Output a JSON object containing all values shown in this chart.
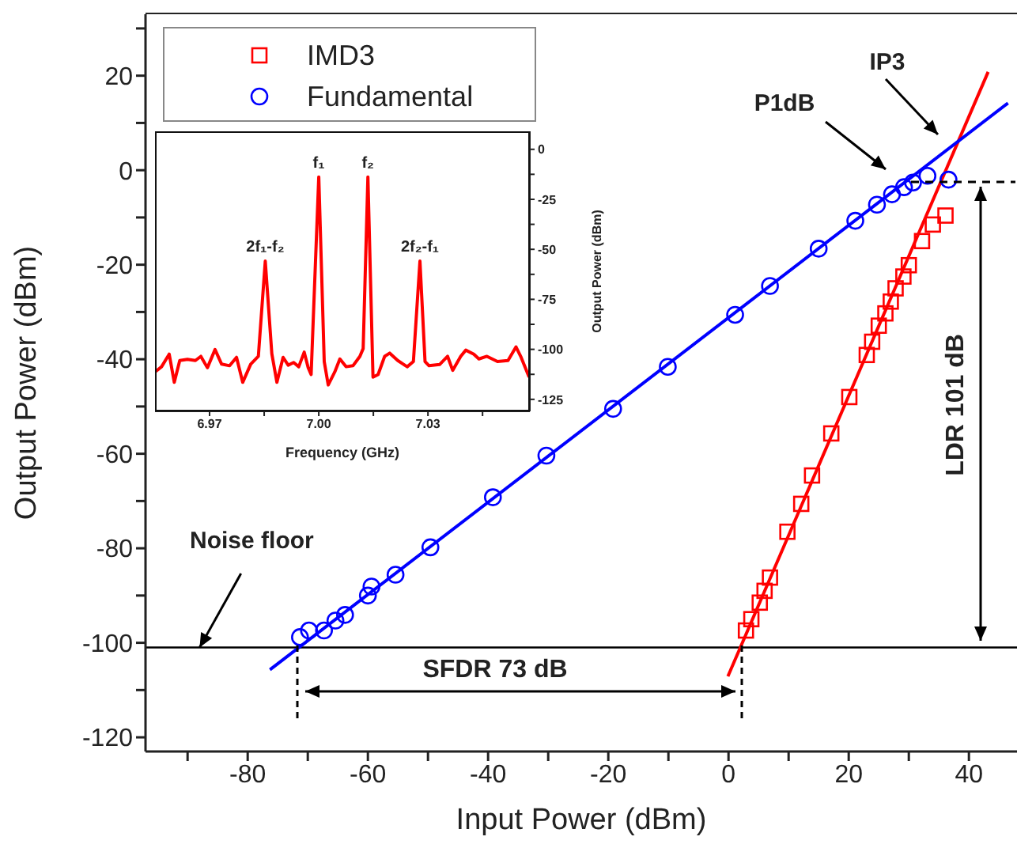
{
  "chart_data": [
    {
      "type": "scatter",
      "xlabel": "Input Power (dBm)",
      "ylabel": "Output Power (dBm)",
      "xlim": [
        -97,
        48
      ],
      "xticks": [
        {
          "value": -90,
          "label": null
        },
        -80,
        {
          "value": -70,
          "label": null
        },
        -60,
        {
          "value": -50,
          "label": null
        },
        -40,
        {
          "value": -30,
          "label": null
        },
        -20,
        {
          "value": -10,
          "label": null
        },
        0,
        {
          "value": 10,
          "label": null
        },
        20,
        {
          "value": 30,
          "label": null
        },
        40
      ],
      "ylim": [
        -123,
        33
      ],
      "yticks": [
        -120,
        {
          "value": -110,
          "label": null
        },
        -100,
        {
          "value": -90,
          "label": null
        },
        -80,
        {
          "value": -70,
          "label": null
        },
        -60,
        {
          "value": -50,
          "label": null
        },
        -40,
        {
          "value": -30,
          "label": null
        },
        -20,
        {
          "value": -10,
          "label": null
        },
        0,
        {
          "value": 10,
          "label": null
        },
        20,
        {
          "value": 30,
          "label": null
        }
      ],
      "legend": "top left",
      "grid": false,
      "series": [
        {
          "type": "line",
          "color": "#ff0000",
          "marker": "none",
          "x": [
            -0.1,
            43.2
          ],
          "values": [
            -107.1,
            20.8
          ]
        },
        {
          "type": "line",
          "color": "#0000ff",
          "marker": "none",
          "x": [
            -76.3,
            46.5
          ],
          "values": [
            -105.7,
            14.2
          ]
        },
        {
          "name": "IMD3",
          "color": "#ff0000",
          "marker": "square",
          "x": [
            2.9,
            3.8,
            5.2,
            6.0,
            6.9,
            9.8,
            12.1,
            13.9,
            17.1,
            20.1,
            23.0,
            23.9,
            25.0,
            26.1,
            27.0,
            27.8,
            29.1,
            30.0,
            32.2,
            34.0,
            36.1
          ],
          "values": [
            -97.4,
            -95.0,
            -91.5,
            -89.0,
            -86.2,
            -76.5,
            -70.6,
            -64.6,
            -55.7,
            -48.0,
            -39.1,
            -36.3,
            -32.9,
            -30.3,
            -27.8,
            -25.0,
            -22.5,
            -20.1,
            -15.0,
            -11.5,
            -9.6
          ]
        },
        {
          "name": "Fundamental",
          "color": "#0000ff",
          "marker": "circle",
          "x": [
            -71.3,
            -69.8,
            -67.3,
            -65.4,
            -63.8,
            -60.0,
            -59.4,
            -55.4,
            -49.6,
            -39.2,
            -30.3,
            -19.2,
            -10.1,
            1.1,
            6.9,
            15.0,
            21.1,
            24.7,
            27.2,
            29.2,
            30.7,
            33.1,
            36.6
          ],
          "values": [
            -98.8,
            -97.4,
            -97.4,
            -95.3,
            -94.1,
            -90.0,
            -88.1,
            -85.6,
            -79.8,
            -69.2,
            -60.4,
            -50.5,
            -41.6,
            -30.6,
            -24.5,
            -16.6,
            -10.7,
            -7.3,
            -5.1,
            -3.6,
            -2.6,
            -1.2,
            -2.0
          ]
        }
      ],
      "ref_lines": [
        {
          "axis": "y",
          "value": -101,
          "color": "#000000"
        }
      ],
      "annotations": [
        "P1dB",
        "IP3",
        {
          "text": "Noise floor",
          "x": -88,
          "y": -101
        },
        "SFDR 73 dB",
        "LDR 101 dB"
      ]
    },
    {
      "type": "line",
      "xlabel": "Frequency (GHz)",
      "ylabel": "Output Power (dBm)",
      "xlim": [
        6.955,
        7.058
      ],
      "xticks": [
        6.97,
        {
          "value": 6.985,
          "label": null
        },
        {
          "value": 7,
          "label": "7.00"
        },
        {
          "value": 7.015,
          "label": null
        },
        7.03,
        {
          "value": 7.045,
          "label": null
        }
      ],
      "ylim": [
        -131,
        9
      ],
      "yticks": [
        {
          "value": -125,
          "label": "-125"
        },
        {
          "value": -112.5,
          "label": null
        },
        -100,
        {
          "value": -87.5,
          "label": null
        },
        -75,
        {
          "value": -62.5,
          "label": null
        },
        -50,
        {
          "value": -37.5,
          "label": null
        },
        -25,
        {
          "value": -12.5,
          "label": null
        },
        0
      ],
      "marker": "none",
      "color": "#ff0000",
      "x": [
        6.955,
        6.9568,
        6.9589,
        6.9603,
        6.9618,
        6.9639,
        6.9661,
        6.9676,
        6.9694,
        6.9715,
        6.9733,
        6.9755,
        6.9774,
        6.9791,
        6.9813,
        6.9834,
        6.9853,
        6.9871,
        6.9885,
        6.9902,
        6.9916,
        6.9931,
        6.9945,
        6.996,
        6.9971,
        6.9979,
        7.0,
        7.0015,
        7.0026,
        7.0044,
        7.0058,
        7.0075,
        7.0094,
        7.0113,
        7.0122,
        7.0135,
        7.0149,
        7.0163,
        7.0181,
        7.0195,
        7.0217,
        7.0243,
        7.026,
        7.0278,
        7.0292,
        7.0303,
        7.0332,
        7.0354,
        7.0368,
        7.039,
        7.0404,
        7.0426,
        7.044,
        7.0462,
        7.0491,
        7.052,
        7.0542,
        7.0556,
        7.0578
      ],
      "values": [
        -111.3,
        -108.7,
        -102.4,
        -116.5,
        -105.6,
        -105.0,
        -105.6,
        -103.5,
        -109.2,
        -100.1,
        -107.4,
        -108.2,
        -104.0,
        -116.5,
        -107.4,
        -103.5,
        -55.9,
        -102.2,
        -116.5,
        -104.0,
        -107.9,
        -106.6,
        -108.7,
        -101.4,
        -109.2,
        -112.6,
        -13.8,
        -106.1,
        -117.8,
        -111.3,
        -104.8,
        -108.7,
        -108.2,
        -103.5,
        -99.6,
        -13.8,
        -113.9,
        -112.6,
        -103.5,
        -101.9,
        -105.6,
        -108.7,
        -106.1,
        -55.9,
        -106.1,
        -108.2,
        -107.6,
        -103.5,
        -110.5,
        -103.5,
        -100.4,
        -102.4,
        -104.8,
        -103.5,
        -106.1,
        -105.6,
        -98.8,
        -104.0,
        -113.9
      ],
      "annotations": [
        {
          "text": "2f₁-f₂",
          "x": 6.9853,
          "y": -55.9
        },
        {
          "text": "f₁",
          "x": 7.0,
          "y": -13.8
        },
        {
          "text": "f₂",
          "x": 7.0135,
          "y": -13.8
        },
        {
          "text": "2f₂-f₁",
          "x": 7.0278,
          "y": -55.9
        }
      ]
    }
  ]
}
